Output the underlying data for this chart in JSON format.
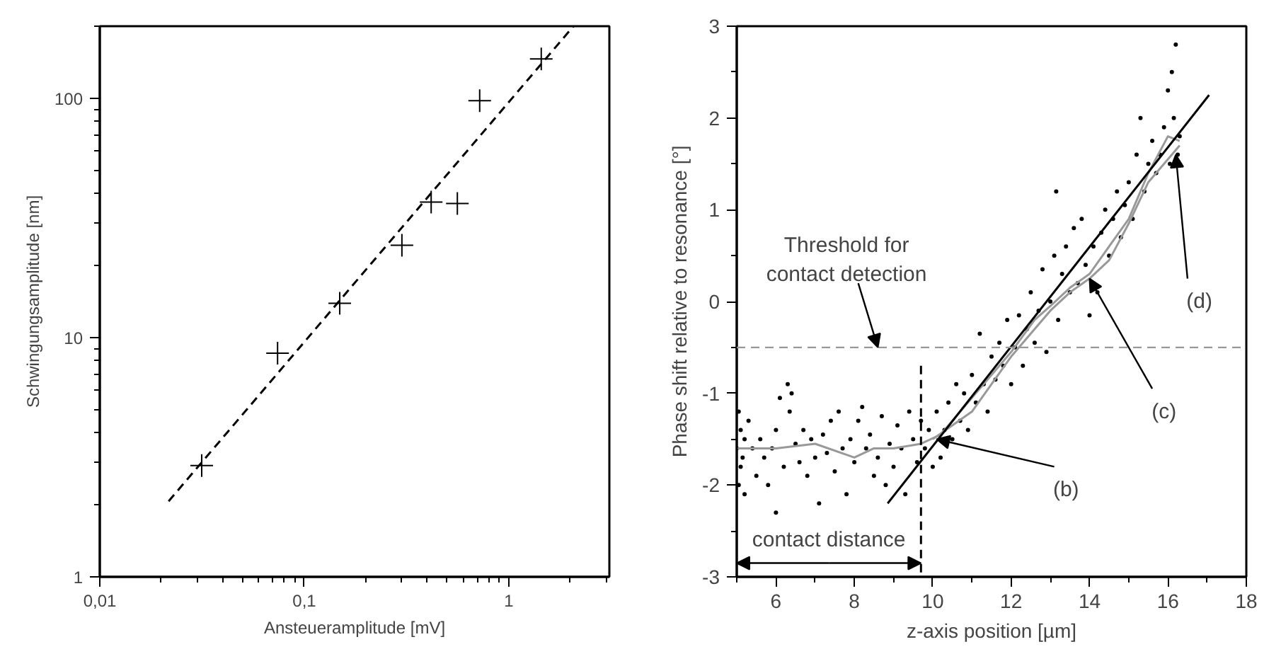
{
  "chart_data": [
    {
      "type": "scatter",
      "log": "xy",
      "grid": false,
      "xlabel": "Ansteueramplitude [mV]",
      "ylabel": "Schwingungsamplitude [nm]",
      "xlim": [
        0.01,
        3.1
      ],
      "ylim": [
        1,
        200
      ],
      "xticks": [
        {
          "value": 0.01,
          "label": "0,01"
        },
        {
          "value": 0.1,
          "label": "0,1"
        },
        1
      ],
      "yticks": [
        1,
        10,
        100
      ],
      "series": [
        {
          "marker": "cross",
          "color": "#000000",
          "x": [
            0.0315,
            0.074,
            0.149,
            0.3,
            0.417,
            0.56,
            0.72,
            1.44
          ],
          "values": [
            2.92,
            8.6,
            13.9,
            24.3,
            36.8,
            36.3,
            97.7,
            146
          ]
        },
        {
          "type": "line",
          "line_style": "dashed",
          "color": "#000000",
          "x": [
            0.0217,
            2.07
          ],
          "values": [
            2.07,
            200
          ]
        }
      ]
    },
    {
      "type": "scatter",
      "grid": false,
      "xlabel": "z-axis position [µm]",
      "ylabel": "Phase shift relative to resonance [°]",
      "xlim": [
        5,
        18
      ],
      "ylim": [
        -3,
        3
      ],
      "xticks": [
        6,
        8,
        10,
        12,
        14,
        16,
        18
      ],
      "yticks": [
        -3,
        -2,
        -1,
        0,
        1,
        2,
        3
      ],
      "series": [
        {
          "marker": "circle",
          "color": "#000000",
          "x": [
            5.0,
            5.05,
            5.05,
            5.1,
            5.1,
            5.15,
            5.2,
            5.2,
            5.3,
            5.4,
            5.5,
            5.6,
            5.7,
            5.8,
            5.9,
            6.0,
            6.0,
            6.1,
            6.2,
            6.3,
            6.35,
            6.4,
            6.5,
            6.6,
            6.7,
            6.8,
            6.9,
            7.0,
            7.1,
            7.2,
            7.3,
            7.4,
            7.5,
            7.6,
            7.7,
            7.8,
            7.9,
            8.0,
            8.1,
            8.2,
            8.3,
            8.4,
            8.5,
            8.6,
            8.7,
            8.8,
            8.9,
            9.0,
            9.1,
            9.2,
            9.3,
            9.4,
            9.5,
            9.6,
            9.7,
            9.8,
            9.9,
            10.0,
            10.1,
            10.2,
            10.3,
            10.4,
            10.5,
            10.6,
            10.7,
            10.8,
            10.9,
            11.0,
            11.1,
            11.2,
            11.3,
            11.4,
            11.5,
            11.6,
            11.7,
            11.8,
            11.9,
            12.0,
            12.1,
            12.2,
            12.3,
            12.4,
            12.5,
            12.6,
            12.7,
            12.8,
            12.9,
            13.0,
            13.1,
            13.15,
            13.2,
            13.3,
            13.4,
            13.5,
            13.6,
            13.7,
            13.8,
            13.9,
            14.0,
            14.1,
            14.2,
            14.3,
            14.4,
            14.5,
            14.6,
            14.7,
            14.8,
            14.9,
            15.0,
            15.1,
            15.2,
            15.3,
            15.4,
            15.5,
            15.6,
            15.7,
            15.8,
            15.9,
            16.0,
            16.05,
            16.1,
            16.15,
            16.2,
            16.25,
            16.3
          ],
          "values": [
            -1.6,
            -1.2,
            -2.0,
            -1.8,
            -1.4,
            -1.7,
            -1.5,
            -2.1,
            -1.3,
            -1.6,
            -1.9,
            -1.5,
            -1.7,
            -2.0,
            -1.6,
            -1.4,
            -2.3,
            -1.05,
            -1.8,
            -0.9,
            -1.2,
            -1.0,
            -1.55,
            -1.75,
            -1.4,
            -1.9,
            -1.5,
            -1.7,
            -2.2,
            -1.45,
            -1.65,
            -1.3,
            -1.85,
            -1.2,
            -1.6,
            -2.1,
            -1.5,
            -1.75,
            -1.3,
            -1.15,
            -1.6,
            -1.45,
            -1.9,
            -1.7,
            -1.25,
            -2.0,
            -1.55,
            -1.8,
            -1.35,
            -1.6,
            -2.1,
            -1.2,
            -1.5,
            -1.75,
            -1.3,
            -1.6,
            -1.4,
            -1.8,
            -1.2,
            -1.7,
            -1.4,
            -1.1,
            -1.5,
            -0.9,
            -1.3,
            -1.0,
            -1.4,
            -0.8,
            -1.1,
            -0.35,
            -0.9,
            -1.2,
            -0.6,
            -0.85,
            -0.45,
            -0.7,
            -0.2,
            -0.9,
            -0.5,
            -0.15,
            -0.7,
            -0.3,
            0.1,
            -0.45,
            -0.1,
            0.35,
            -0.55,
            0.0,
            0.5,
            1.2,
            -0.2,
            0.3,
            0.6,
            0.1,
            0.8,
            0.2,
            0.9,
            0.4,
            -0.15,
            0.6,
            0.1,
            0.75,
            1.0,
            0.5,
            0.9,
            1.2,
            0.7,
            1.05,
            1.3,
            0.9,
            1.6,
            2.0,
            1.2,
            1.5,
            1.75,
            1.4,
            1.6,
            1.9,
            2.3,
            1.5,
            2.5,
            2.0,
            2.8,
            1.6,
            1.8
          ]
        },
        {
          "type": "line",
          "line_style": "solid",
          "color": "#999999",
          "x": [
            5,
            6,
            7,
            8,
            8.5,
            9,
            9.7,
            10.2,
            11,
            12,
            12.6,
            13,
            13.5,
            14,
            14.5,
            15,
            15.5,
            16,
            16.3
          ],
          "values": [
            -1.6,
            -1.6,
            -1.55,
            -1.7,
            -1.6,
            -1.6,
            -1.55,
            -1.45,
            -1.05,
            -0.55,
            -0.2,
            -0.05,
            0.15,
            0.3,
            0.6,
            0.9,
            1.4,
            1.8,
            1.75
          ]
        },
        {
          "type": "line",
          "line_style": "solid",
          "color": "#999999",
          "x": [
            10,
            11,
            12,
            13,
            13.5,
            14,
            14.5,
            15,
            15.5,
            16,
            16.3
          ],
          "values": [
            -1.5,
            -1.2,
            -0.6,
            -0.1,
            0.1,
            0.25,
            0.45,
            0.85,
            1.3,
            1.55,
            1.7
          ]
        },
        {
          "type": "line",
          "line_style": "solid",
          "color": "#000000",
          "x": [
            8.85,
            17.05
          ],
          "values": [
            -2.2,
            2.25
          ]
        },
        {
          "type": "line",
          "line_style": "dashed",
          "color": "#000000",
          "x": [
            9.7,
            9.7
          ],
          "values": [
            -0.7,
            -3
          ]
        }
      ],
      "ref_lines": [
        {
          "axis": "y",
          "value": -0.5,
          "color": "#999999",
          "line_style": "dashed"
        }
      ],
      "annotations": [
        {
          "text": "Threshold for\ncontact detection",
          "x": 8.6,
          "y": -0.5
        },
        {
          "text": "(b)",
          "x": 10.1,
          "y": -1.5
        },
        {
          "text": "(c)",
          "x": 14.0,
          "y": 0.25
        },
        {
          "text": "(d)",
          "x": 16.2,
          "y": 1.6
        },
        "contact distance"
      ]
    }
  ]
}
